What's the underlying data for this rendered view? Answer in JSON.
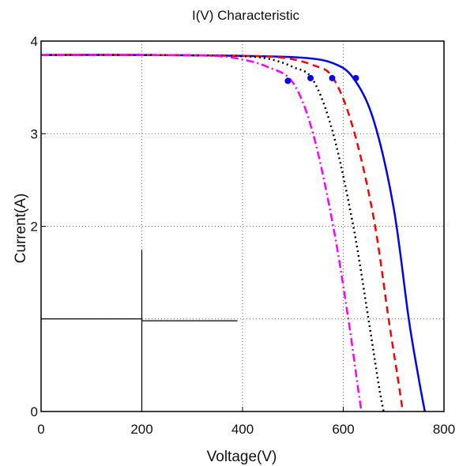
{
  "chart_data": {
    "type": "line",
    "title": "I(V) Characteristic",
    "xlabel": "Voltage(V)",
    "ylabel": "Current(A)",
    "xlim": [
      0,
      800
    ],
    "ylim": [
      0,
      4
    ],
    "x_ticks": [
      0,
      200,
      400,
      600,
      800
    ],
    "y_ticks": [
      0,
      2,
      3,
      4
    ],
    "y_tick_labels": [
      "0",
      "2",
      "3",
      "4"
    ],
    "grid": true,
    "series": [
      {
        "color": "#0000ff",
        "line_style": "solid",
        "x": [
          0,
          200,
          400,
          520,
          580,
          620,
          660,
          700,
          730,
          750,
          762
        ],
        "y": [
          3.85,
          3.85,
          3.84,
          3.82,
          3.76,
          3.6,
          3.15,
          2.2,
          1.0,
          0.35,
          0
        ],
        "marker": {
          "x": 625,
          "y": 3.6
        }
      },
      {
        "color": "#ff0000",
        "line_style": "dashed",
        "x": [
          0,
          200,
          400,
          480,
          540,
          580,
          620,
          660,
          690,
          710,
          718
        ],
        "y": [
          3.85,
          3.85,
          3.84,
          3.82,
          3.74,
          3.6,
          3.05,
          2.1,
          1.0,
          0.3,
          0
        ],
        "marker": {
          "x": 578,
          "y": 3.6
        }
      },
      {
        "color": "#000000",
        "line_style": "dotted",
        "x": [
          0,
          200,
          380,
          450,
          500,
          540,
          580,
          620,
          650,
          670,
          680
        ],
        "y": [
          3.85,
          3.85,
          3.84,
          3.81,
          3.72,
          3.58,
          3.0,
          2.0,
          1.0,
          0.3,
          0
        ],
        "marker": {
          "x": 535,
          "y": 3.6
        }
      },
      {
        "color": "#ff00ff",
        "line_style": "dashdot",
        "x": [
          0,
          200,
          340,
          400,
          450,
          500,
          540,
          580,
          610,
          628,
          636
        ],
        "y": [
          3.85,
          3.85,
          3.84,
          3.8,
          3.72,
          3.55,
          3.0,
          2.0,
          1.0,
          0.3,
          0
        ],
        "marker": {
          "x": 490,
          "y": 3.57
        }
      }
    ],
    "annotation_lines": [
      {
        "x": [
          0,
          200
        ],
        "y": [
          1.0,
          1.0
        ]
      },
      {
        "x": [
          200,
          390
        ],
        "y": [
          0.98,
          0.98
        ]
      },
      {
        "x": [
          200,
          200
        ],
        "y": [
          0,
          1.75
        ]
      }
    ]
  }
}
